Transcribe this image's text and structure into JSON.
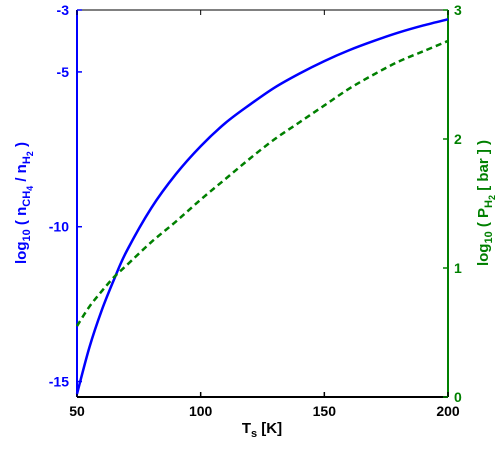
{
  "chart_data": {
    "type": "line",
    "x_axis": {
      "label_main": "T",
      "label_sub": "s",
      "label_unit": " [K]",
      "range": [
        50,
        200
      ],
      "ticks": [
        50,
        100,
        150,
        200
      ],
      "tick_labels": [
        "50",
        "100",
        "150",
        "200"
      ]
    },
    "y_left": {
      "label_main": "log",
      "label_sub1": "10",
      "label_mid": " ( n",
      "label_sub2": "CH",
      "label_sub2b": "4",
      "label_mid2": " / n",
      "label_sub3": "H",
      "label_sub3b": "2",
      "label_end": " )",
      "range": [
        -15.5,
        -3
      ],
      "ticks": [
        -15,
        -10,
        -5,
        -3
      ],
      "tick_labels": [
        "-15",
        "-10",
        "-5",
        "-3"
      ],
      "color": "#0000ff"
    },
    "y_right": {
      "label_main": "log",
      "label_sub1": "10",
      "label_mid": " ( P",
      "label_sub2": "H",
      "label_sub2b": "2",
      "label_end": " [ bar ] )",
      "range": [
        0,
        3
      ],
      "ticks": [
        0,
        1,
        2,
        3
      ],
      "tick_labels": [
        "0",
        "1",
        "2",
        "3"
      ],
      "color": "#008000"
    },
    "series": [
      {
        "axis": "left",
        "color": "#0000ff",
        "style": "solid",
        "x": [
          50,
          55,
          60,
          65,
          70,
          80,
          90,
          100,
          110,
          120,
          130,
          140,
          150,
          160,
          170,
          180,
          190,
          200
        ],
        "y": [
          -15.4,
          -13.9,
          -12.7,
          -11.7,
          -10.8,
          -9.4,
          -8.3,
          -7.4,
          -6.65,
          -6.05,
          -5.5,
          -5.05,
          -4.65,
          -4.3,
          -4.0,
          -3.73,
          -3.5,
          -3.3
        ]
      },
      {
        "axis": "right",
        "color": "#008000",
        "style": "dashed",
        "x": [
          50,
          55,
          60,
          65,
          70,
          80,
          90,
          100,
          110,
          120,
          130,
          140,
          150,
          160,
          170,
          180,
          190,
          200
        ],
        "y": [
          0.55,
          0.7,
          0.82,
          0.93,
          1.02,
          1.2,
          1.36,
          1.53,
          1.69,
          1.85,
          2.0,
          2.13,
          2.26,
          2.39,
          2.5,
          2.6,
          2.68,
          2.76
        ]
      }
    ],
    "grid": false
  }
}
